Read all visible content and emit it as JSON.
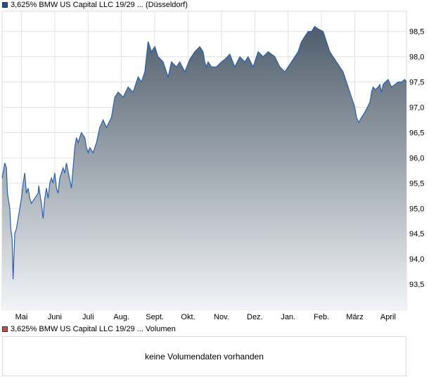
{
  "legend": {
    "price_label": "3,625% BMW US Capital LLC 19/29 ... (Düsseldorf)",
    "price_color": "#1f4f9c",
    "volume_label": "3,625% BMW US Capital LLC 19/29 ... Volumen",
    "volume_color": "#c0504d"
  },
  "volume_panel": {
    "message": "keine Volumendaten vorhanden"
  },
  "chart_data": {
    "type": "area",
    "title": "",
    "xlabel": "",
    "ylabel": "",
    "ylim": [
      93.0,
      98.9
    ],
    "grid": true,
    "y_axis_side": "right",
    "y_ticks": [
      "93,5",
      "94,0",
      "94,5",
      "95,0",
      "95,5",
      "96,0",
      "96,5",
      "97,0",
      "97,5",
      "98,0",
      "98,5"
    ],
    "y_tick_values": [
      93.5,
      94.0,
      94.5,
      95.0,
      95.5,
      96.0,
      96.5,
      97.0,
      97.5,
      98.0,
      98.5
    ],
    "x_ticks": [
      "Mai",
      "Juni",
      "Juli",
      "Aug.",
      "Sept.",
      "Okt.",
      "Nov.",
      "Dez.",
      "Jan.",
      "Feb.",
      "März",
      "April"
    ],
    "x_tick_positions": [
      0.5,
      1.5,
      2.5,
      3.5,
      4.5,
      5.5,
      6.5,
      7.5,
      8.5,
      9.5,
      10.5,
      11.5
    ],
    "x_range": [
      -0.08,
      12.05
    ],
    "colors": {
      "line": "#2a5fad",
      "fill_top": "#4e5d6b",
      "fill_bottom": "#f2f4f7"
    },
    "series": [
      {
        "x": [
          -0.08,
          0.0,
          0.05,
          0.08,
          0.15,
          0.18,
          0.22,
          0.25,
          0.3,
          0.35,
          0.4,
          0.45,
          0.5,
          0.55,
          0.6,
          0.65,
          0.7,
          0.75,
          0.8,
          0.9,
          1.0,
          1.02,
          1.05,
          1.1,
          1.15,
          1.2,
          1.25,
          1.3,
          1.35,
          1.4,
          1.45,
          1.5,
          1.55,
          1.6,
          1.65,
          1.7,
          1.75,
          1.8,
          1.85,
          2.0,
          2.1,
          2.15,
          2.2,
          2.3,
          2.4,
          2.45,
          2.5,
          2.55,
          2.65,
          2.75,
          2.85,
          2.95,
          3.05,
          3.2,
          3.3,
          3.4,
          3.55,
          3.7,
          3.85,
          4.0,
          4.1,
          4.2,
          4.25,
          4.3,
          4.4,
          4.5,
          4.6,
          4.75,
          4.9,
          5.0,
          5.15,
          5.25,
          5.4,
          5.55,
          5.7,
          5.85,
          5.95,
          6.0,
          6.05,
          6.1,
          6.2,
          6.35,
          6.5,
          6.6,
          6.75,
          6.9,
          7.05,
          7.2,
          7.3,
          7.45,
          7.6,
          7.75,
          7.9,
          8.1,
          8.25,
          8.4,
          8.5,
          8.6,
          8.7,
          8.8,
          8.9,
          9.0,
          9.1,
          9.2,
          9.3,
          9.4,
          9.55,
          9.65,
          9.7,
          9.75,
          9.85,
          9.95,
          10.05,
          10.15,
          10.2,
          10.25,
          10.3,
          10.35,
          10.4,
          10.45,
          10.5,
          10.55,
          10.62,
          10.7,
          10.8,
          10.88,
          10.95,
          10.98,
          11.0,
          11.05,
          11.12,
          11.2,
          11.25,
          11.3,
          11.35,
          11.42,
          11.5,
          11.6,
          11.7,
          11.8,
          11.9,
          12.0,
          12.05
        ],
        "y": [
          95.6,
          95.9,
          95.8,
          95.3,
          95.0,
          94.6,
          94.4,
          93.6,
          94.5,
          94.6,
          94.8,
          95.0,
          95.2,
          95.5,
          95.7,
          95.3,
          95.4,
          95.2,
          95.1,
          95.2,
          95.3,
          95.45,
          95.3,
          95.1,
          94.8,
          95.2,
          95.4,
          95.2,
          95.5,
          95.6,
          95.5,
          95.7,
          95.4,
          95.3,
          95.6,
          95.7,
          95.8,
          95.7,
          95.9,
          95.4,
          96.2,
          96.4,
          96.3,
          96.5,
          96.4,
          96.2,
          96.1,
          96.2,
          96.1,
          96.3,
          96.6,
          96.75,
          96.6,
          96.8,
          97.2,
          97.3,
          97.2,
          97.4,
          97.3,
          97.6,
          97.5,
          97.7,
          98.0,
          98.3,
          98.1,
          98.2,
          98.0,
          97.9,
          97.6,
          97.9,
          97.8,
          97.9,
          97.7,
          97.95,
          98.1,
          98.2,
          98.1,
          97.9,
          97.8,
          97.9,
          97.8,
          97.8,
          97.9,
          97.95,
          98.05,
          97.8,
          98.0,
          97.9,
          98.0,
          97.8,
          98.1,
          98.0,
          98.1,
          98.0,
          97.8,
          97.7,
          97.8,
          97.9,
          98.0,
          98.1,
          98.3,
          98.4,
          98.5,
          98.5,
          98.6,
          98.55,
          98.5,
          98.3,
          98.2,
          98.1,
          98.0,
          97.9,
          97.8,
          97.7,
          97.6,
          97.5,
          97.4,
          97.3,
          97.2,
          97.1,
          97.0,
          96.8,
          96.7,
          96.8,
          96.9,
          97.0,
          97.1,
          97.2,
          97.3,
          97.4,
          97.35,
          97.4,
          97.45,
          97.3,
          97.45,
          97.5,
          97.55,
          97.4,
          97.45,
          97.5,
          97.5,
          97.55,
          97.5
        ]
      }
    ]
  }
}
